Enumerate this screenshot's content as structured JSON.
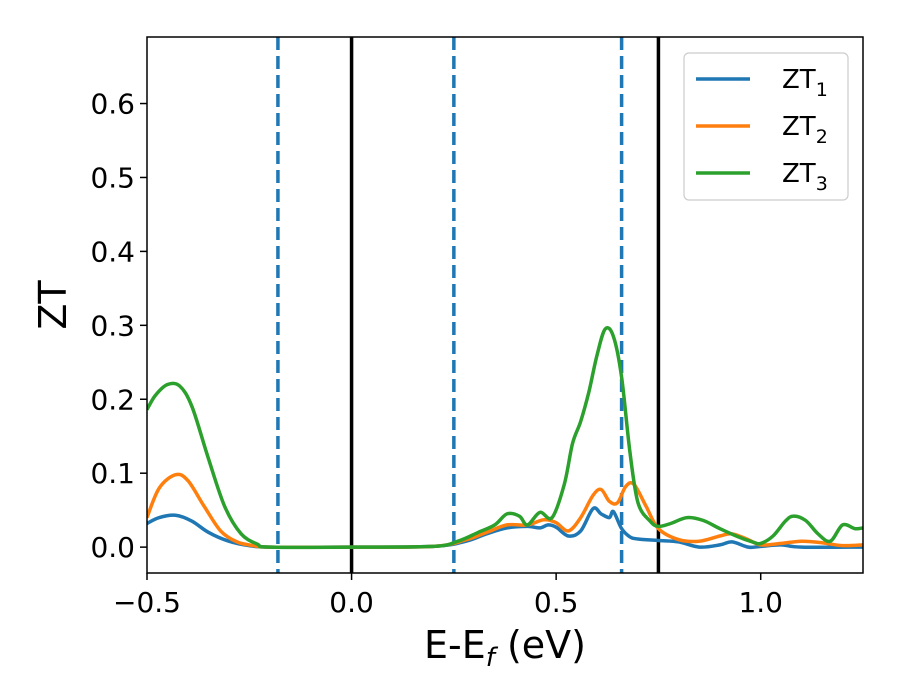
{
  "chart_data": {
    "type": "line",
    "xlabel": {
      "main": "E-E",
      "sub": "f",
      "tail": " (eV)"
    },
    "ylabel": "ZT",
    "xlim": [
      -0.5,
      1.25
    ],
    "ylim": [
      -0.035,
      0.69
    ],
    "x_ticks": [
      {
        "value": -0.5,
        "label": "−0.5"
      },
      {
        "value": 0.0,
        "label": "0.0"
      },
      {
        "value": 0.5,
        "label": "0.5"
      },
      {
        "value": 1.0,
        "label": "1.0"
      }
    ],
    "y_ticks": [
      {
        "value": 0.0,
        "label": "0.0"
      },
      {
        "value": 0.1,
        "label": "0.1"
      },
      {
        "value": 0.2,
        "label": "0.2"
      },
      {
        "value": 0.3,
        "label": "0.3"
      },
      {
        "value": 0.4,
        "label": "0.4"
      },
      {
        "value": 0.5,
        "label": "0.5"
      },
      {
        "value": 0.6,
        "label": "0.6"
      }
    ],
    "grid": false,
    "legend_position": "top-right",
    "vlines_solid": {
      "color": "#000000",
      "x": [
        0.0,
        0.75
      ]
    },
    "vlines_dashed": {
      "color": "#1f77b4",
      "x": [
        -0.18,
        0.25,
        0.66
      ]
    },
    "series": [
      {
        "name": "ZT",
        "sub": "1",
        "color": "#1f77b4",
        "points": [
          [
            -0.5,
            0.032
          ],
          [
            -0.47,
            0.04
          ],
          [
            -0.43,
            0.043
          ],
          [
            -0.39,
            0.035
          ],
          [
            -0.35,
            0.02
          ],
          [
            -0.3,
            0.008
          ],
          [
            -0.25,
            0.002
          ],
          [
            -0.2,
            0.0
          ],
          [
            0.0,
            0.0
          ],
          [
            0.2,
            0.001
          ],
          [
            0.28,
            0.008
          ],
          [
            0.33,
            0.018
          ],
          [
            0.38,
            0.026
          ],
          [
            0.43,
            0.028
          ],
          [
            0.46,
            0.026
          ],
          [
            0.48,
            0.03
          ],
          [
            0.5,
            0.027
          ],
          [
            0.53,
            0.015
          ],
          [
            0.56,
            0.022
          ],
          [
            0.59,
            0.052
          ],
          [
            0.61,
            0.045
          ],
          [
            0.63,
            0.04
          ],
          [
            0.64,
            0.048
          ],
          [
            0.66,
            0.025
          ],
          [
            0.68,
            0.014
          ],
          [
            0.7,
            0.011
          ],
          [
            0.75,
            0.009
          ],
          [
            0.8,
            0.007
          ],
          [
            0.85,
            0.0
          ],
          [
            0.9,
            0.003
          ],
          [
            0.93,
            0.007
          ],
          [
            0.97,
            0.0
          ],
          [
            1.0,
            0.001
          ],
          [
            1.05,
            0.003
          ],
          [
            1.1,
            0.0
          ],
          [
            1.25,
            0.0
          ]
        ]
      },
      {
        "name": "ZT",
        "sub": "2",
        "color": "#ff7f0e",
        "points": [
          [
            -0.5,
            0.04
          ],
          [
            -0.47,
            0.08
          ],
          [
            -0.43,
            0.098
          ],
          [
            -0.4,
            0.09
          ],
          [
            -0.36,
            0.055
          ],
          [
            -0.32,
            0.022
          ],
          [
            -0.28,
            0.007
          ],
          [
            -0.24,
            0.002
          ],
          [
            -0.2,
            0.0
          ],
          [
            0.0,
            0.0
          ],
          [
            0.2,
            0.001
          ],
          [
            0.28,
            0.01
          ],
          [
            0.33,
            0.02
          ],
          [
            0.38,
            0.03
          ],
          [
            0.43,
            0.03
          ],
          [
            0.47,
            0.037
          ],
          [
            0.5,
            0.033
          ],
          [
            0.53,
            0.022
          ],
          [
            0.56,
            0.04
          ],
          [
            0.59,
            0.07
          ],
          [
            0.61,
            0.078
          ],
          [
            0.63,
            0.062
          ],
          [
            0.65,
            0.06
          ],
          [
            0.67,
            0.082
          ],
          [
            0.69,
            0.085
          ],
          [
            0.72,
            0.055
          ],
          [
            0.75,
            0.025
          ],
          [
            0.8,
            0.01
          ],
          [
            0.85,
            0.008
          ],
          [
            0.9,
            0.015
          ],
          [
            0.93,
            0.018
          ],
          [
            0.97,
            0.01
          ],
          [
            1.0,
            0.003
          ],
          [
            1.05,
            0.005
          ],
          [
            1.1,
            0.008
          ],
          [
            1.15,
            0.006
          ],
          [
            1.2,
            0.002
          ],
          [
            1.25,
            0.003
          ]
        ]
      },
      {
        "name": "ZT",
        "sub": "3",
        "color": "#2ca02c",
        "points": [
          [
            -0.5,
            0.186
          ],
          [
            -0.48,
            0.205
          ],
          [
            -0.45,
            0.22
          ],
          [
            -0.42,
            0.218
          ],
          [
            -0.39,
            0.19
          ],
          [
            -0.35,
            0.12
          ],
          [
            -0.31,
            0.055
          ],
          [
            -0.27,
            0.018
          ],
          [
            -0.23,
            0.004
          ],
          [
            -0.2,
            0.0
          ],
          [
            0.0,
            0.0
          ],
          [
            0.2,
            0.001
          ],
          [
            0.26,
            0.008
          ],
          [
            0.31,
            0.02
          ],
          [
            0.35,
            0.03
          ],
          [
            0.38,
            0.045
          ],
          [
            0.41,
            0.042
          ],
          [
            0.43,
            0.03
          ],
          [
            0.46,
            0.047
          ],
          [
            0.49,
            0.04
          ],
          [
            0.52,
            0.085
          ],
          [
            0.54,
            0.14
          ],
          [
            0.56,
            0.17
          ],
          [
            0.58,
            0.21
          ],
          [
            0.6,
            0.26
          ],
          [
            0.62,
            0.295
          ],
          [
            0.64,
            0.285
          ],
          [
            0.66,
            0.23
          ],
          [
            0.68,
            0.13
          ],
          [
            0.7,
            0.06
          ],
          [
            0.73,
            0.035
          ],
          [
            0.75,
            0.028
          ],
          [
            0.78,
            0.032
          ],
          [
            0.82,
            0.04
          ],
          [
            0.86,
            0.036
          ],
          [
            0.9,
            0.025
          ],
          [
            0.94,
            0.015
          ],
          [
            0.98,
            0.007
          ],
          [
            1.0,
            0.005
          ],
          [
            1.03,
            0.015
          ],
          [
            1.06,
            0.035
          ],
          [
            1.08,
            0.042
          ],
          [
            1.11,
            0.036
          ],
          [
            1.14,
            0.018
          ],
          [
            1.17,
            0.008
          ],
          [
            1.2,
            0.03
          ],
          [
            1.23,
            0.025
          ],
          [
            1.25,
            0.026
          ]
        ]
      }
    ]
  }
}
